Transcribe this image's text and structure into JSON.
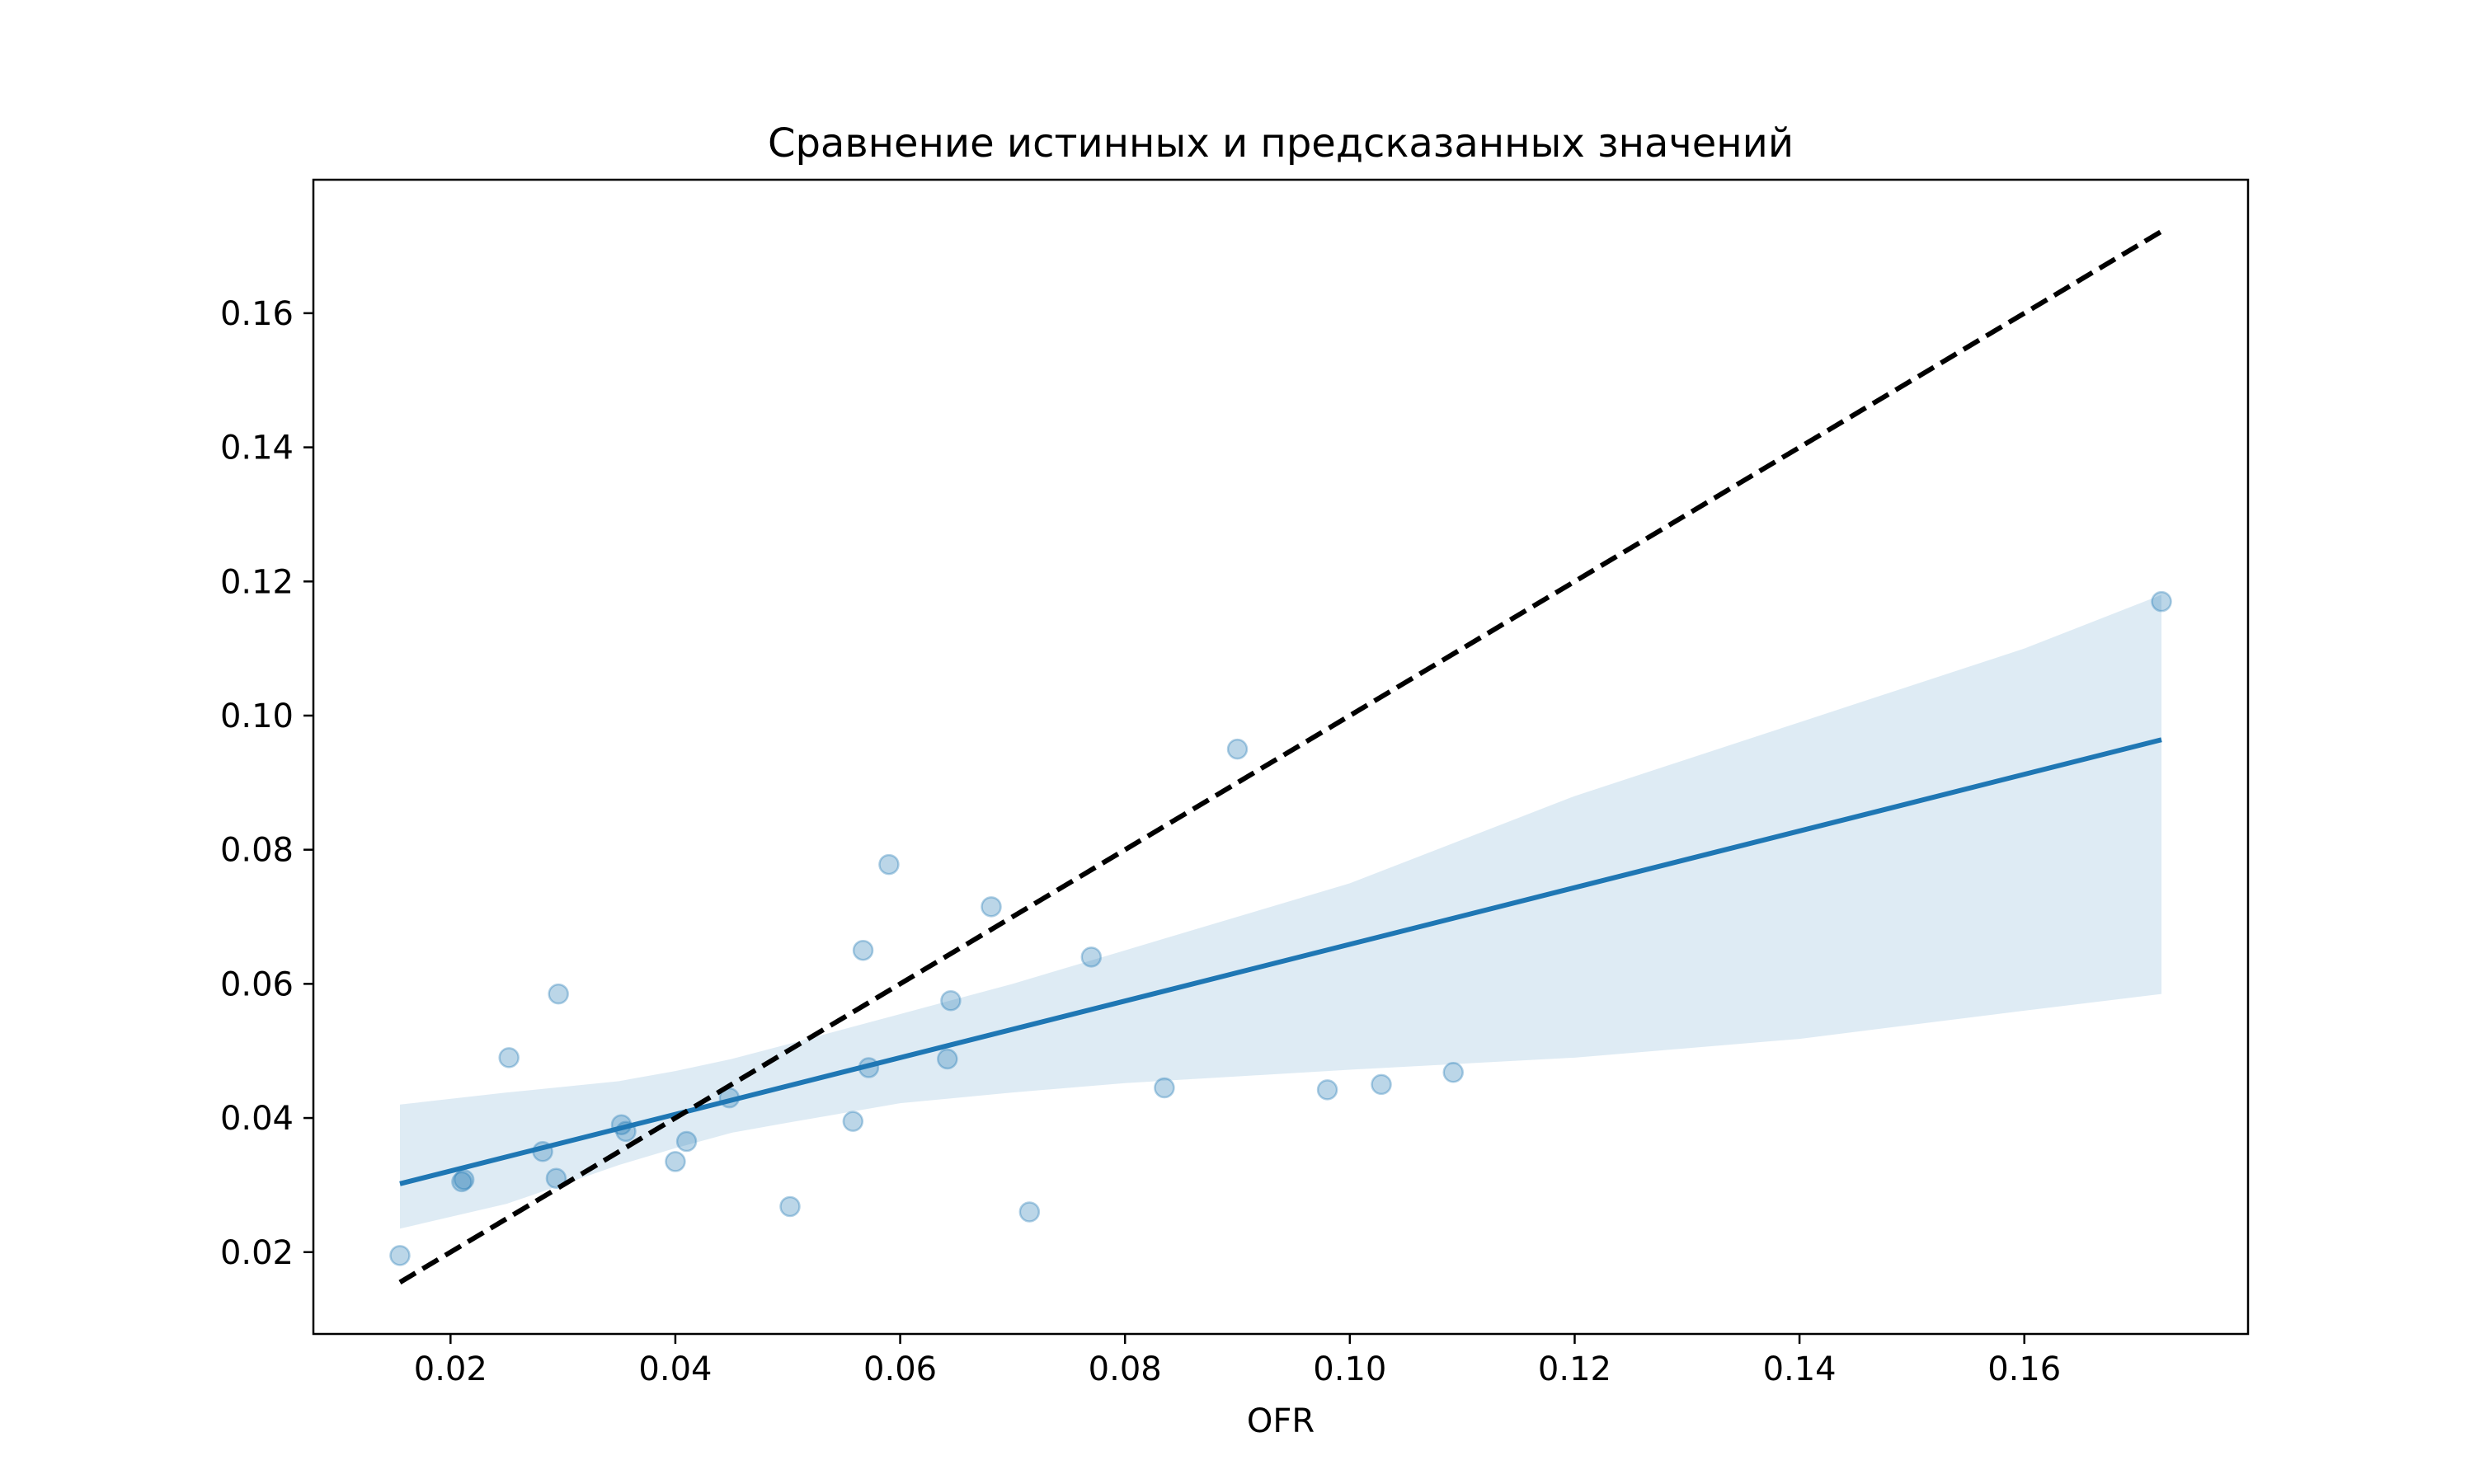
{
  "chart_data": {
    "type": "scatter",
    "title": "Сравнение истинных и предсказанных значений",
    "xlabel": "OFR",
    "ylabel": "",
    "xlim": [
      0.0078,
      0.1799
    ],
    "ylim": [
      0.0078,
      0.1799
    ],
    "xticks": [
      0.02,
      0.04,
      0.06,
      0.08,
      0.1,
      0.12,
      0.14,
      0.16
    ],
    "xtick_labels": [
      "0.02",
      "0.04",
      "0.06",
      "0.08",
      "0.10",
      "0.12",
      "0.14",
      "0.16"
    ],
    "yticks": [
      0.02,
      0.04,
      0.06,
      0.08,
      0.1,
      0.12,
      0.14,
      0.16
    ],
    "ytick_labels": [
      "0.02",
      "0.04",
      "0.06",
      "0.08",
      "0.10",
      "0.12",
      "0.14",
      "0.16"
    ],
    "grid": false,
    "series": [
      {
        "kind": "points",
        "color": "#1f77b4",
        "opacity": 0.3,
        "x": [
          0.0155,
          0.021,
          0.0212,
          0.0252,
          0.0282,
          0.0294,
          0.0296,
          0.0352,
          0.0356,
          0.04,
          0.041,
          0.0448,
          0.0502,
          0.0558,
          0.0567,
          0.0572,
          0.059,
          0.0642,
          0.0645,
          0.0681,
          0.0715,
          0.077,
          0.0835,
          0.09,
          0.098,
          0.1028,
          0.1092,
          0.1722
        ],
        "y": [
          0.0195,
          0.0305,
          0.0308,
          0.049,
          0.035,
          0.031,
          0.0585,
          0.039,
          0.038,
          0.0335,
          0.0365,
          0.043,
          0.0268,
          0.0395,
          0.065,
          0.0475,
          0.0778,
          0.0488,
          0.0575,
          0.0715,
          0.026,
          0.064,
          0.0445,
          0.095,
          0.0442,
          0.045,
          0.0468,
          0.117
        ]
      },
      {
        "kind": "regression",
        "color": "#1f77b4",
        "x": [
          0.0155,
          0.1722
        ],
        "y": [
          0.0302,
          0.0964
        ]
      },
      {
        "kind": "confidence-band",
        "color": "#1f77b4",
        "opacity": 0.15,
        "x": [
          0.0155,
          0.025,
          0.035,
          0.04,
          0.045,
          0.05,
          0.06,
          0.07,
          0.08,
          0.09,
          0.1,
          0.12,
          0.14,
          0.16,
          0.1722
        ],
        "upper": [
          0.042,
          0.0438,
          0.0455,
          0.047,
          0.0488,
          0.051,
          0.0555,
          0.06,
          0.065,
          0.07,
          0.075,
          0.088,
          0.099,
          0.11,
          0.118
        ],
        "lower": [
          0.0235,
          0.0272,
          0.033,
          0.0355,
          0.0378,
          0.0393,
          0.0422,
          0.0438,
          0.0452,
          0.0462,
          0.0472,
          0.049,
          0.0518,
          0.056,
          0.0585
        ]
      },
      {
        "kind": "identity",
        "color": "#000000",
        "dashed": true,
        "x": [
          0.0155,
          0.1722
        ],
        "y": [
          0.0155,
          0.1722
        ]
      }
    ]
  }
}
